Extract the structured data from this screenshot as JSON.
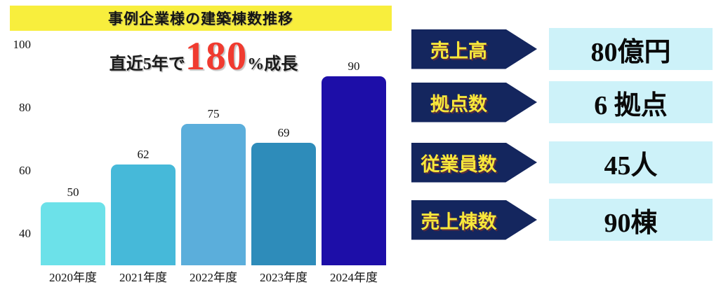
{
  "title_banner": {
    "text": "事例企業様の建築棟数推移",
    "background": "#F8EE3D"
  },
  "growth_note": {
    "prefix": "直近5年で",
    "highlight": "180",
    "suffix": "%成長",
    "highlight_color": "#F03B30"
  },
  "chart_data": {
    "type": "bar",
    "title": "事例企業様の建築棟数推移",
    "categories": [
      "2020年度",
      "2021年度",
      "2022年度",
      "2023年度",
      "2024年度"
    ],
    "values": [
      50,
      62,
      75,
      69,
      90
    ],
    "bar_colors": [
      "#6CE1E9",
      "#46B9D9",
      "#5BAEDB",
      "#2E8CBA",
      "#1D0EA8"
    ],
    "yticks": [
      40,
      60,
      80,
      100
    ],
    "ylim": [
      30,
      105
    ],
    "grid": false,
    "legend": false,
    "data_labels": true,
    "annotation": "直近5年で180%成長"
  },
  "stats": {
    "arrow_color": "#14265E",
    "label_color": "#F7E83B",
    "box_color": "#CDF2F9",
    "rows": [
      {
        "label": "売上高",
        "value": "80億円"
      },
      {
        "label": "拠点数",
        "value": "6 拠点"
      },
      {
        "label": "従業員数",
        "value": "45人"
      },
      {
        "label": "売上棟数",
        "value": "90棟"
      }
    ]
  }
}
